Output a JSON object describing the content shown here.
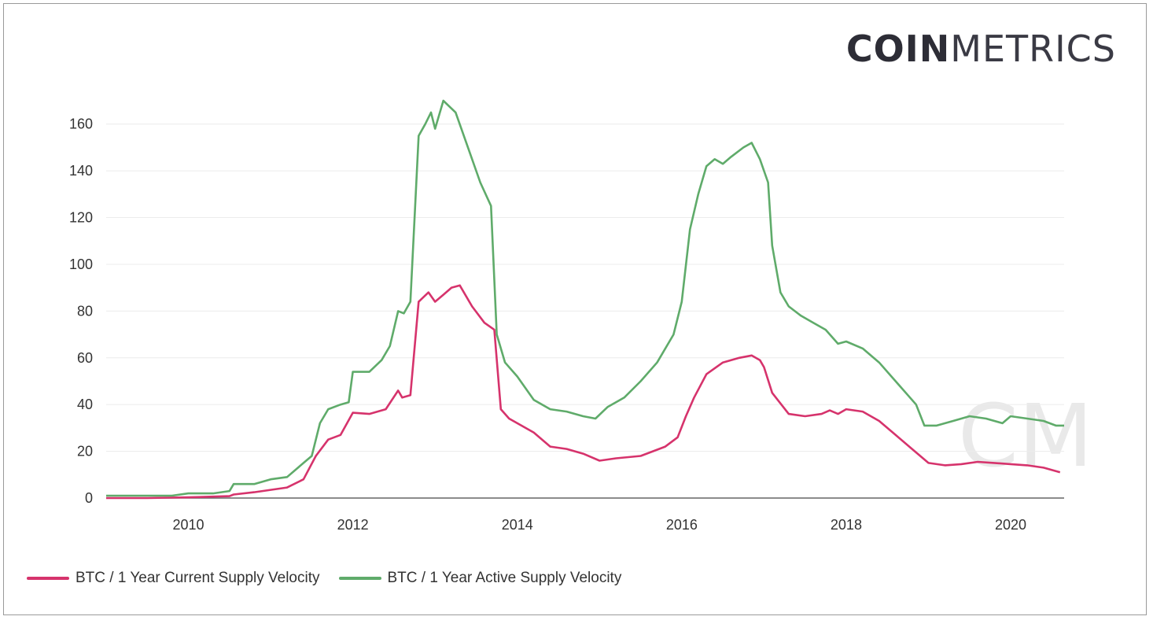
{
  "brand": {
    "bold": "COIN",
    "light": "METRICS"
  },
  "watermark": "CM",
  "chart_data": {
    "type": "line",
    "title": "",
    "xlabel": "",
    "ylabel": "",
    "xlim": [
      2009.0,
      2020.65
    ],
    "ylim": [
      0,
      170
    ],
    "yticks": [
      0,
      20,
      40,
      60,
      80,
      100,
      120,
      140,
      160
    ],
    "xticks": [
      2010,
      2012,
      2014,
      2016,
      2018,
      2020
    ],
    "grid": true,
    "legend_position": "bottom-left",
    "series": [
      {
        "name": "BTC / 1 Year Current Supply Velocity",
        "color": "#d6336c",
        "x": [
          2009.0,
          2009.5,
          2010.0,
          2010.3,
          2010.5,
          2010.55,
          2010.8,
          2011.0,
          2011.2,
          2011.4,
          2011.55,
          2011.7,
          2011.85,
          2012.0,
          2012.2,
          2012.4,
          2012.55,
          2012.6,
          2012.7,
          2012.8,
          2012.92,
          2013.0,
          2013.1,
          2013.2,
          2013.3,
          2013.45,
          2013.6,
          2013.72,
          2013.8,
          2013.9,
          2014.0,
          2014.2,
          2014.4,
          2014.6,
          2014.8,
          2015.0,
          2015.2,
          2015.5,
          2015.8,
          2015.95,
          2016.05,
          2016.15,
          2016.3,
          2016.5,
          2016.7,
          2016.85,
          2016.95,
          2017.0,
          2017.1,
          2017.3,
          2017.5,
          2017.7,
          2017.8,
          2017.9,
          2018.0,
          2018.2,
          2018.4,
          2018.6,
          2018.8,
          2019.0,
          2019.2,
          2019.4,
          2019.6,
          2019.8,
          2020.0,
          2020.2,
          2020.4,
          2020.6
        ],
        "values": [
          0,
          0,
          0.3,
          0.6,
          0.8,
          1.5,
          2.5,
          3.5,
          4.5,
          8,
          18,
          25,
          27,
          36.5,
          36,
          38,
          46,
          43,
          44,
          84,
          88,
          84,
          87,
          90,
          91,
          82,
          75,
          72,
          38,
          34,
          32,
          28,
          22,
          21,
          19,
          16,
          17,
          18,
          22,
          26,
          35,
          43,
          53,
          58,
          60,
          61,
          59,
          56,
          45,
          36,
          35,
          36,
          37.5,
          36,
          38,
          37,
          33,
          27,
          21,
          15,
          14,
          14.5,
          15.5,
          15,
          14.5,
          14,
          13,
          11
        ]
      },
      {
        "name": "BTC / 1 Year Active Supply Velocity",
        "color": "#5fab6a",
        "x": [
          2009.0,
          2009.5,
          2009.8,
          2010.0,
          2010.3,
          2010.5,
          2010.55,
          2010.8,
          2011.0,
          2011.2,
          2011.4,
          2011.5,
          2011.6,
          2011.7,
          2011.85,
          2011.95,
          2012.0,
          2012.2,
          2012.35,
          2012.45,
          2012.55,
          2012.62,
          2012.7,
          2012.8,
          2012.88,
          2012.95,
          2013.0,
          2013.1,
          2013.25,
          2013.4,
          2013.55,
          2013.68,
          2013.75,
          2013.85,
          2014.0,
          2014.2,
          2014.4,
          2014.6,
          2014.8,
          2014.95,
          2015.1,
          2015.3,
          2015.5,
          2015.7,
          2015.9,
          2016.0,
          2016.1,
          2016.2,
          2016.3,
          2016.4,
          2016.5,
          2016.6,
          2016.75,
          2016.85,
          2016.95,
          2017.05,
          2017.1,
          2017.2,
          2017.3,
          2017.45,
          2017.6,
          2017.75,
          2017.9,
          2018.0,
          2018.2,
          2018.4,
          2018.6,
          2018.75,
          2018.85,
          2018.95,
          2019.1,
          2019.3,
          2019.5,
          2019.7,
          2019.9,
          2020.0,
          2020.2,
          2020.4,
          2020.55,
          2020.65
        ],
        "values": [
          1,
          1,
          1,
          2,
          2,
          3,
          6,
          6,
          8,
          9,
          15,
          18,
          32,
          38,
          40,
          41,
          54,
          54,
          59,
          65,
          80,
          79,
          84,
          155,
          160,
          165,
          158,
          170,
          165,
          150,
          135,
          125,
          70,
          58,
          52,
          42,
          38,
          37,
          35,
          34,
          39,
          43,
          50,
          58,
          70,
          84,
          115,
          130,
          142,
          145,
          143,
          146,
          150,
          152,
          145,
          135,
          108,
          88,
          82,
          78,
          75,
          72,
          66,
          67,
          64,
          58,
          50,
          44,
          40,
          31,
          31,
          33,
          35,
          34,
          32,
          35,
          34,
          33,
          31,
          31
        ]
      }
    ]
  }
}
